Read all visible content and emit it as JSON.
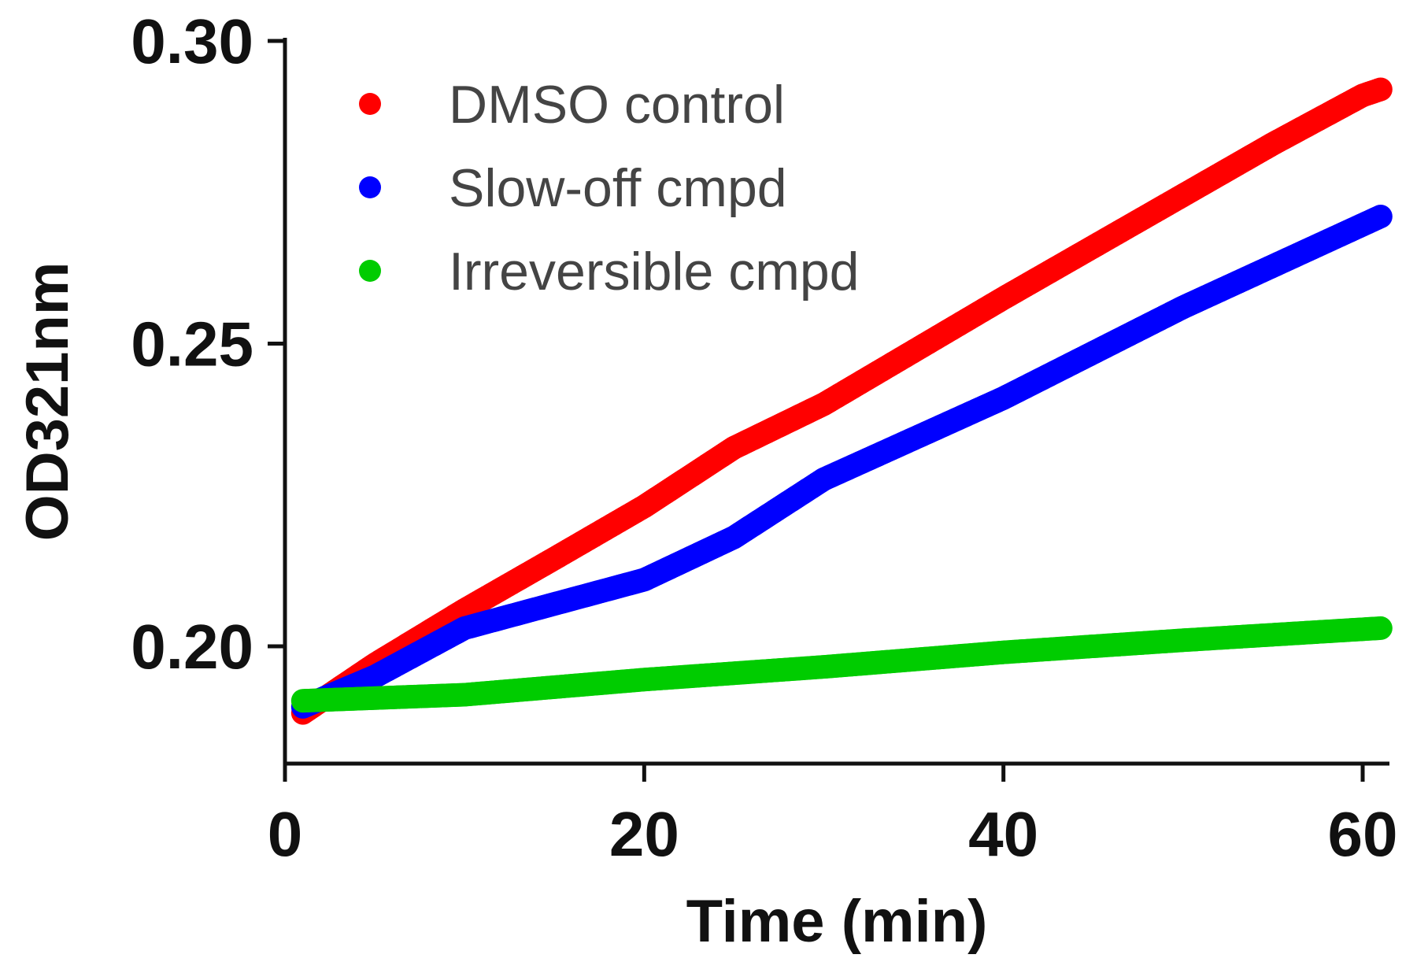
{
  "chart_data": {
    "type": "scatter",
    "title": "",
    "xlabel": "Time (min)",
    "ylabel": "OD321nm",
    "xlim": [
      0,
      61
    ],
    "ylim": [
      0.1806,
      0.3
    ],
    "xticks": [
      0,
      20,
      40,
      60
    ],
    "xtick_labels": [
      "0",
      "20",
      "40",
      "60"
    ],
    "yticks": [
      0.2,
      0.25,
      0.3
    ],
    "ytick_labels": [
      "0.20",
      "0.25",
      "0.30"
    ],
    "grid": false,
    "legend_position": "top-left",
    "series": [
      {
        "name": "DMSO control",
        "color": "#ff0000",
        "x": [
          1,
          3,
          5,
          10,
          15,
          20,
          25,
          30,
          40,
          50,
          55,
          60,
          61
        ],
        "y": [
          0.189,
          0.193,
          0.197,
          0.206,
          0.2145,
          0.2231,
          0.2328,
          0.24,
          0.2575,
          0.2745,
          0.283,
          0.291,
          0.292
        ]
      },
      {
        "name": "Slow-off cmpd",
        "color": "#0000ff",
        "x": [
          1,
          3,
          5,
          10,
          15,
          20,
          25,
          30,
          40,
          50,
          61
        ],
        "y": [
          0.19,
          0.1925,
          0.195,
          0.203,
          0.207,
          0.211,
          0.218,
          0.2276,
          0.241,
          0.256,
          0.271
        ]
      },
      {
        "name": "Irreversible cmpd",
        "color": "#00cc00",
        "x": [
          1,
          10,
          20,
          30,
          40,
          50,
          61
        ],
        "y": [
          0.191,
          0.192,
          0.1945,
          0.1966,
          0.199,
          0.201,
          0.203
        ]
      }
    ]
  }
}
